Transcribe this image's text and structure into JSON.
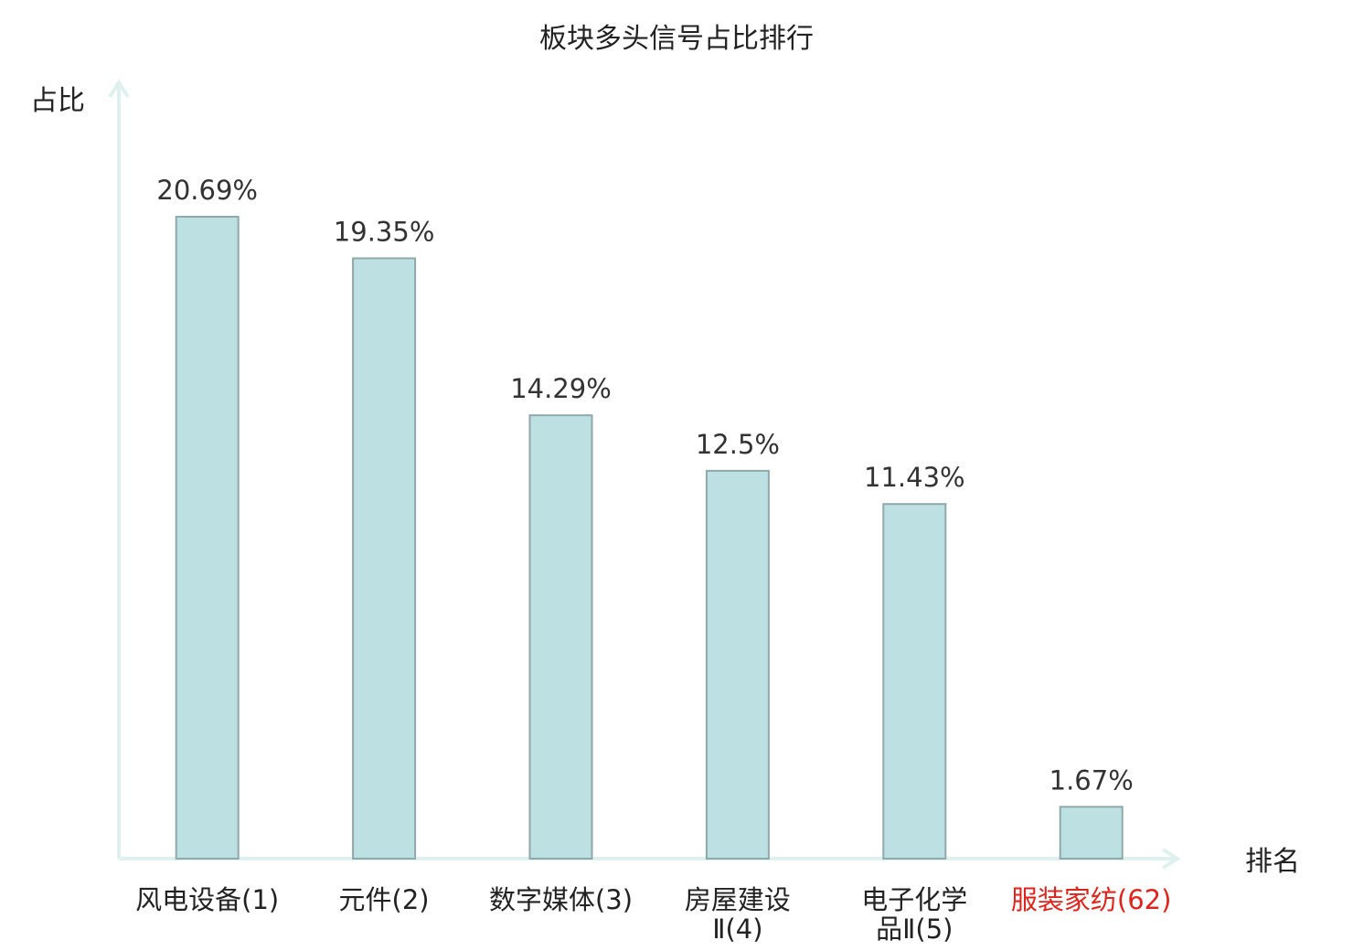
{
  "chart_data": {
    "type": "bar",
    "title": "板块多头信号占比排行",
    "ylabel": "占比",
    "xlabel": "排名",
    "categories": [
      {
        "lines": [
          "风电设备(1)"
        ],
        "highlight": false
      },
      {
        "lines": [
          "元件(2)"
        ],
        "highlight": false
      },
      {
        "lines": [
          "数字媒体(3)"
        ],
        "highlight": false
      },
      {
        "lines": [
          "房屋建设",
          "Ⅱ(4)"
        ],
        "highlight": false
      },
      {
        "lines": [
          "电子化学",
          "品Ⅱ(5)"
        ],
        "highlight": false
      },
      {
        "lines": [
          "服装家纺(62)"
        ],
        "highlight": true
      }
    ],
    "values": [
      20.69,
      19.35,
      14.29,
      12.5,
      11.43,
      1.67
    ],
    "value_labels": [
      "20.69%",
      "19.35%",
      "14.29%",
      "12.5%",
      "11.43%",
      "1.67%"
    ],
    "ylim": [
      0,
      25
    ],
    "grid": false,
    "legend": "none",
    "colors": {
      "bar_fill": "#bde0e2",
      "bar_stroke": "#8fa9ab",
      "axis": "#dff1ee",
      "text": "#222222",
      "highlight": "#e0241b"
    }
  }
}
